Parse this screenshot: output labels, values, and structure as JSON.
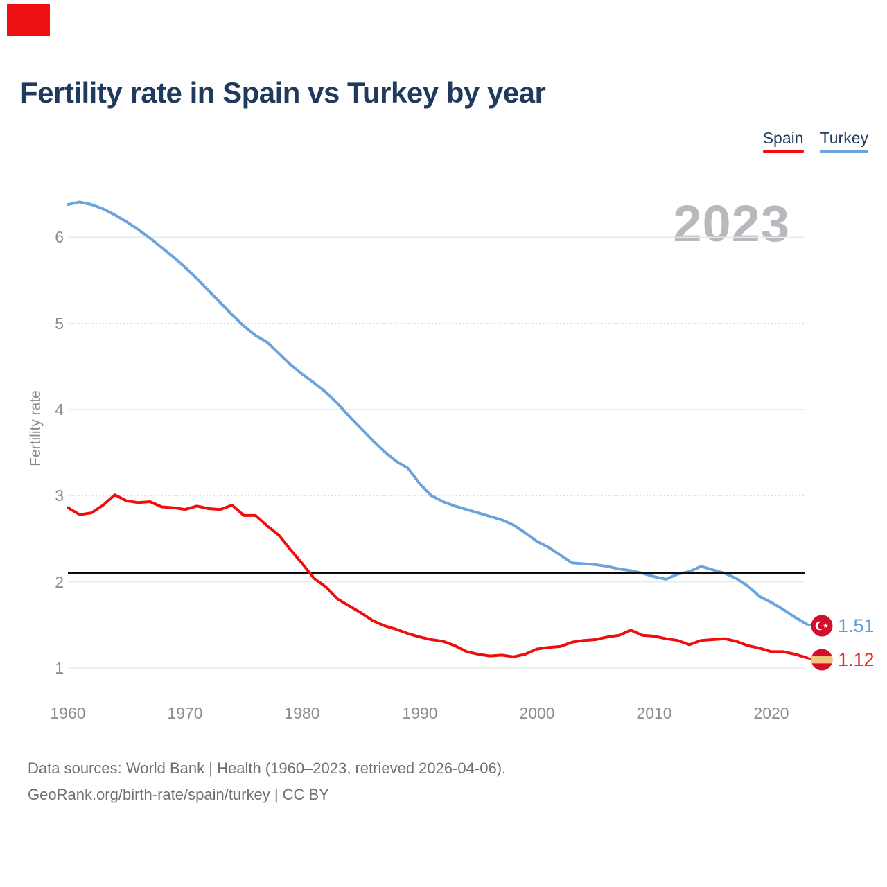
{
  "page": {
    "title": "Fertility rate in Spain vs Turkey by year"
  },
  "legend": {
    "items": [
      {
        "label": "Spain",
        "color": "#f20d0d"
      },
      {
        "label": "Turkey",
        "color": "#6ba3dc"
      }
    ]
  },
  "watermark": "2023",
  "axes": {
    "y_label": "Fertility rate",
    "y_ticks": [
      {
        "label": "6",
        "value": 6,
        "style": "solid"
      },
      {
        "label": "5",
        "value": 5,
        "style": "dotted"
      },
      {
        "label": "4",
        "value": 4,
        "style": "solid"
      },
      {
        "label": "3",
        "value": 3,
        "style": "dotted"
      },
      {
        "label": "2",
        "value": 2,
        "style": "solid"
      },
      {
        "label": "1",
        "value": 1,
        "style": "solid"
      }
    ],
    "x_ticks": [
      {
        "label": "1960",
        "value": 1960
      },
      {
        "label": "1970",
        "value": 1970
      },
      {
        "label": "1980",
        "value": 1980
      },
      {
        "label": "1990",
        "value": 1990
      },
      {
        "label": "2000",
        "value": 2000
      },
      {
        "label": "2010",
        "value": 2010
      },
      {
        "label": "2020",
        "value": 2020
      }
    ]
  },
  "end_labels": {
    "turkey": {
      "value": "1.51",
      "flag": "turkey-circular-flag"
    },
    "spain": {
      "value": "1.12",
      "flag": "spain-circular-flag"
    }
  },
  "footer": {
    "line1": "Data sources: World Bank | Health (1960–2023, retrieved 2026-04-06).",
    "line2": "GeoRank.org/birth-rate/spain/turkey | CC BY"
  },
  "colors": {
    "title_text": "#1f3a5c",
    "spain_red": "#f20d0d",
    "turkey_blue": "#6ba3dc",
    "reference_black": "#0d0d0d",
    "tick_gray": "#8b8b90",
    "watermark_gray": "#b9b9bd",
    "gridline": "#e8e8ea",
    "flag_red": "#d40d2a",
    "flag_yellow": "#f6c37e",
    "annotation_red": "#ee1111"
  },
  "chart_data": {
    "type": "line",
    "title": "Fertility rate in Spain vs Turkey by year",
    "xlabel": "",
    "ylabel": "Fertility rate",
    "xlim": [
      1960,
      2023
    ],
    "ylim": [
      1,
      6.6
    ],
    "grid": "horizontal",
    "legend_position": "top-right",
    "reference_line": 2.1,
    "x": [
      1960,
      1961,
      1962,
      1963,
      1964,
      1965,
      1966,
      1967,
      1968,
      1969,
      1970,
      1971,
      1972,
      1973,
      1974,
      1975,
      1976,
      1977,
      1978,
      1979,
      1980,
      1981,
      1982,
      1983,
      1984,
      1985,
      1986,
      1987,
      1988,
      1989,
      1990,
      1991,
      1992,
      1993,
      1994,
      1995,
      1996,
      1997,
      1998,
      1999,
      2000,
      2001,
      2002,
      2003,
      2004,
      2005,
      2006,
      2007,
      2008,
      2009,
      2010,
      2011,
      2012,
      2013,
      2014,
      2015,
      2016,
      2017,
      2018,
      2019,
      2020,
      2021,
      2022,
      2023
    ],
    "series": [
      {
        "name": "Turkey",
        "color": "#6ba3dc",
        "end_value": 1.51,
        "values": [
          6.38,
          6.41,
          6.38,
          6.33,
          6.26,
          6.18,
          6.09,
          5.99,
          5.88,
          5.77,
          5.65,
          5.52,
          5.38,
          5.24,
          5.1,
          4.97,
          4.86,
          4.78,
          4.65,
          4.52,
          4.41,
          4.31,
          4.2,
          4.07,
          3.92,
          3.78,
          3.64,
          3.51,
          3.4,
          3.32,
          3.14,
          3.0,
          2.93,
          2.88,
          2.84,
          2.8,
          2.76,
          2.72,
          2.66,
          2.57,
          2.47,
          2.4,
          2.31,
          2.22,
          2.21,
          2.2,
          2.18,
          2.15,
          2.13,
          2.1,
          2.06,
          2.03,
          2.09,
          2.12,
          2.18,
          2.14,
          2.1,
          2.04,
          1.95,
          1.83,
          1.76,
          1.68,
          1.59,
          1.51
        ]
      },
      {
        "name": "Spain",
        "color": "#f20d0d",
        "end_value": 1.12,
        "values": [
          2.86,
          2.78,
          2.8,
          2.89,
          3.01,
          2.94,
          2.92,
          2.93,
          2.87,
          2.86,
          2.84,
          2.88,
          2.85,
          2.84,
          2.89,
          2.77,
          2.77,
          2.65,
          2.54,
          2.37,
          2.21,
          2.04,
          1.94,
          1.8,
          1.72,
          1.64,
          1.55,
          1.49,
          1.45,
          1.4,
          1.36,
          1.33,
          1.31,
          1.26,
          1.19,
          1.16,
          1.14,
          1.15,
          1.13,
          1.16,
          1.22,
          1.24,
          1.25,
          1.3,
          1.32,
          1.33,
          1.36,
          1.38,
          1.44,
          1.38,
          1.37,
          1.34,
          1.32,
          1.27,
          1.32,
          1.33,
          1.34,
          1.31,
          1.26,
          1.23,
          1.19,
          1.19,
          1.16,
          1.12
        ]
      }
    ]
  }
}
